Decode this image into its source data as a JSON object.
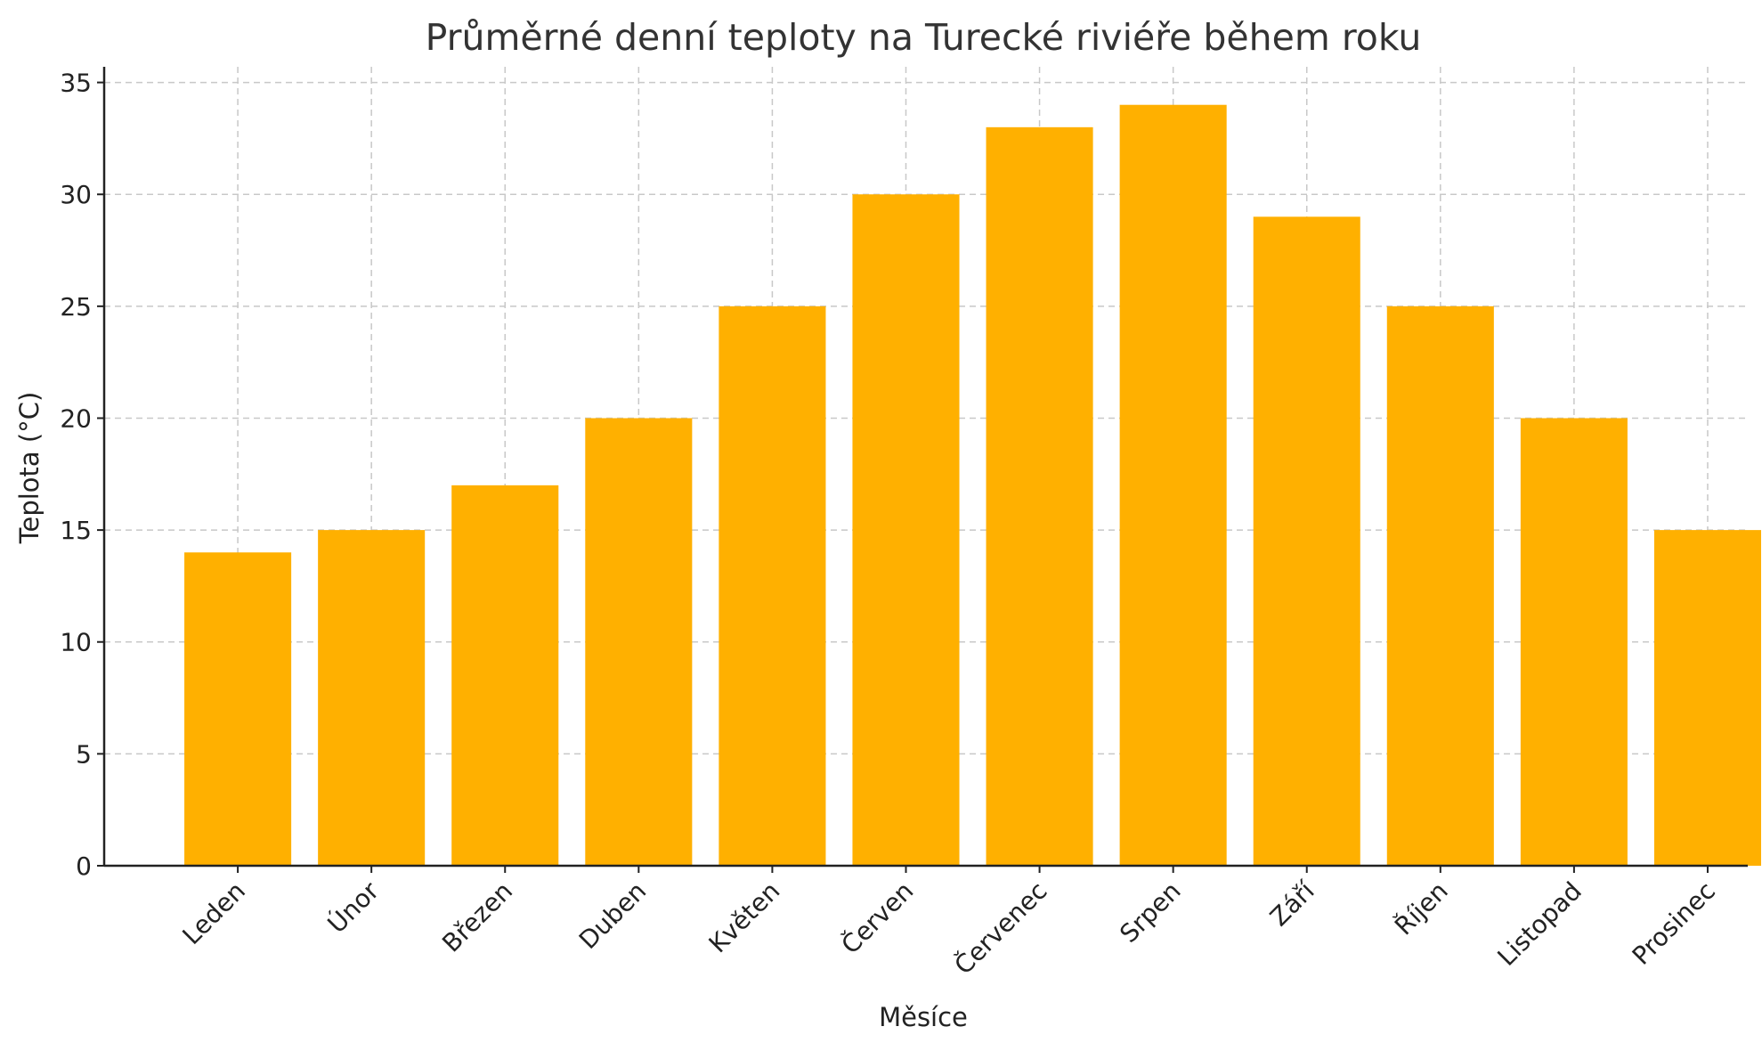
{
  "chart_data": {
    "type": "bar",
    "title": "Průměrné denní teploty na Turecké riviéře během roku",
    "xlabel": "Měsíce",
    "ylabel": "Teplota (°C)",
    "categories": [
      "Leden",
      "Únor",
      "Březen",
      "Duben",
      "Květen",
      "Červen",
      "Červenec",
      "Srpen",
      "Září",
      "Říjen",
      "Listopad",
      "Prosinec"
    ],
    "values": [
      14,
      15,
      17,
      20,
      25,
      30,
      33,
      34,
      29,
      25,
      20,
      15
    ],
    "ylim": [
      0,
      35.7
    ],
    "yticks": [
      0,
      5,
      10,
      15,
      20,
      25,
      30,
      35
    ],
    "grid": true,
    "bar_color": "#ffb000"
  }
}
